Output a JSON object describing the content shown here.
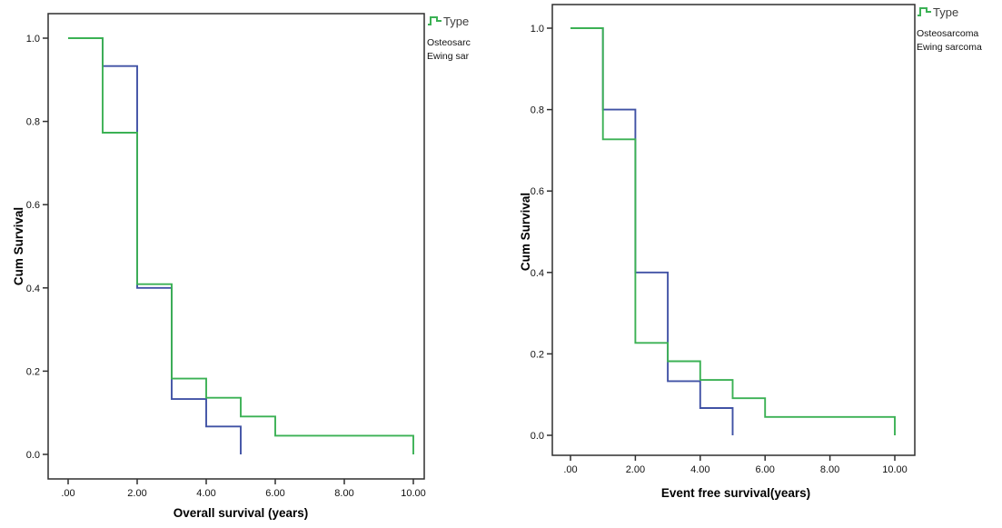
{
  "page": {
    "background": "#ffffff"
  },
  "colors": {
    "osteosarcoma": "#4052a5",
    "ewing": "#3bb154",
    "axis": "#2f2f2f",
    "text": "#111111",
    "legend_title": "#3d3d3d"
  },
  "chart_data": [
    {
      "type": "line",
      "subtype": "kaplan-meier-step",
      "title": "",
      "xlabel": "Overall survival (years)",
      "ylabel": "Cum Survival",
      "xlim": [
        0,
        10
      ],
      "ylim": [
        0,
        1
      ],
      "grid": false,
      "x_ticks": {
        "values": [
          0,
          2,
          4,
          6,
          8,
          10
        ],
        "labels": [
          ".00",
          "2.00",
          "4.00",
          "6.00",
          "8.00",
          "10.00"
        ]
      },
      "y_ticks": {
        "values": [
          0,
          0.2,
          0.4,
          0.6,
          0.8,
          1.0
        ],
        "labels": [
          "0.0",
          "0.2",
          "0.4",
          "0.6",
          "0.8",
          "1.0"
        ]
      },
      "legend": {
        "title": "Type",
        "position": "top-right-outside",
        "entries": [
          {
            "label": "Osteosarc",
            "color_key": "osteosarcoma"
          },
          {
            "label": "Ewing sar",
            "color_key": "ewing"
          }
        ]
      },
      "series": [
        {
          "name": "Osteosarcoma",
          "color_key": "osteosarcoma",
          "points": [
            [
              0,
              1.0
            ],
            [
              1,
              1.0
            ],
            [
              1,
              0.933
            ],
            [
              2,
              0.933
            ],
            [
              2,
              0.4
            ],
            [
              3,
              0.4
            ],
            [
              3,
              0.133
            ],
            [
              4,
              0.133
            ],
            [
              4,
              0.067
            ],
            [
              5,
              0.067
            ],
            [
              5,
              0.0
            ]
          ]
        },
        {
          "name": "Ewing sarcoma",
          "color_key": "ewing",
          "points": [
            [
              0,
              1.0
            ],
            [
              1,
              1.0
            ],
            [
              1,
              0.773
            ],
            [
              2,
              0.773
            ],
            [
              2,
              0.409
            ],
            [
              3,
              0.409
            ],
            [
              3,
              0.182
            ],
            [
              4,
              0.182
            ],
            [
              4,
              0.136
            ],
            [
              5,
              0.136
            ],
            [
              5,
              0.091
            ],
            [
              6,
              0.091
            ],
            [
              6,
              0.045
            ],
            [
              10,
              0.045
            ],
            [
              10,
              0.0
            ]
          ]
        }
      ]
    },
    {
      "type": "line",
      "subtype": "kaplan-meier-step",
      "title": "",
      "xlabel": "Event free survival(years)",
      "ylabel": "Cum Survival",
      "xlim": [
        0,
        10
      ],
      "ylim": [
        0,
        1
      ],
      "grid": false,
      "x_ticks": {
        "values": [
          0,
          2,
          4,
          6,
          8,
          10
        ],
        "labels": [
          ".00",
          "2.00",
          "4.00",
          "6.00",
          "8.00",
          "10.00"
        ]
      },
      "y_ticks": {
        "values": [
          0,
          0.2,
          0.4,
          0.6,
          0.8,
          1.0
        ],
        "labels": [
          "0.0",
          "0.2",
          "0.4",
          "0.6",
          "0.8",
          "1.0"
        ]
      },
      "legend": {
        "title": "Type",
        "position": "top-right-outside",
        "entries": [
          {
            "label": "Osteosarcoma",
            "color_key": "osteosarcoma"
          },
          {
            "label": "Ewing sarcoma",
            "color_key": "ewing"
          }
        ]
      },
      "series": [
        {
          "name": "Osteosarcoma",
          "color_key": "osteosarcoma",
          "points": [
            [
              0,
              1.0
            ],
            [
              1,
              1.0
            ],
            [
              1,
              0.8
            ],
            [
              2,
              0.8
            ],
            [
              2,
              0.4
            ],
            [
              3,
              0.4
            ],
            [
              3,
              0.133
            ],
            [
              4,
              0.133
            ],
            [
              4,
              0.067
            ],
            [
              5,
              0.067
            ],
            [
              5,
              0.0
            ]
          ]
        },
        {
          "name": "Ewing sarcoma",
          "color_key": "ewing",
          "points": [
            [
              0,
              1.0
            ],
            [
              1,
              1.0
            ],
            [
              1,
              0.727
            ],
            [
              2,
              0.727
            ],
            [
              2,
              0.227
            ],
            [
              3,
              0.227
            ],
            [
              3,
              0.182
            ],
            [
              4,
              0.182
            ],
            [
              4,
              0.136
            ],
            [
              5,
              0.136
            ],
            [
              5,
              0.091
            ],
            [
              6,
              0.091
            ],
            [
              6,
              0.045
            ],
            [
              10,
              0.045
            ],
            [
              10,
              0.0
            ]
          ]
        }
      ]
    }
  ]
}
